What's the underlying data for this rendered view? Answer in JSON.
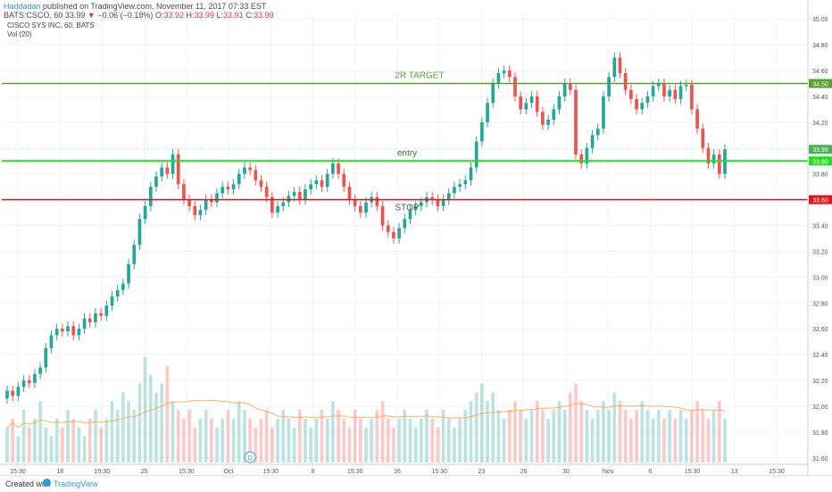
{
  "header": {
    "author": "Haddadan",
    "published_text": " published on TradingView.com, November 11, 2017 07:33 EST",
    "symbol": "BATS:CSCO, 60",
    "last_price": "33.99",
    "change_arrow": "▼",
    "change": "−0.06 (−0.18%)",
    "o_label": "O:",
    "o_value": "33.92",
    "h_label": "H:",
    "h_value": "33.99",
    "l_label": "L:",
    "l_value": "33.91",
    "c_label": "C:",
    "c_value": "33.99"
  },
  "legend": {
    "title": "CISCO SYS INC, 60, BATS",
    "volume": "Vol (20)"
  },
  "footer": {
    "created_with": "Created with",
    "brand": "TradingView"
  },
  "colors": {
    "up": "#26a69a",
    "down": "#ef5350",
    "target": "#5aa02c",
    "entry": "#21e021",
    "stop": "#e0141e",
    "last": "#4caf50"
  },
  "chart_data": {
    "type": "candlestick",
    "title": "CISCO SYS INC, 60, BATS",
    "ylim": [
      31.55,
      35.05
    ],
    "y_ticks": [
      "31.60",
      "31.80",
      "32.00",
      "32.20",
      "32.40",
      "32.60",
      "32.80",
      "33.00",
      "33.20",
      "33.40",
      "33.60",
      "33.80",
      "34.00",
      "34.20",
      "34.40",
      "34.60",
      "34.80",
      "35.00"
    ],
    "x_ticks": [
      "15:30",
      "18",
      "15:30",
      "25",
      "15:30",
      "Oct",
      "15:30",
      "9",
      "15:30",
      "16",
      "15:30",
      "23",
      "26",
      "30",
      "Nov",
      "6",
      "15:30",
      "13",
      "15:30"
    ],
    "levels": [
      {
        "label": "2R TARGET",
        "value": 34.5,
        "price_tag": "34.50"
      },
      {
        "label": "entry",
        "value": 33.9,
        "price_tag": "33.90"
      },
      {
        "label": "STOP",
        "value": 33.6,
        "price_tag": "33.60"
      }
    ],
    "last_price_tag": "33.99",
    "last_value": 33.99,
    "events": [
      {
        "label": "D",
        "kind": "dividend"
      }
    ],
    "series": [
      {
        "name": "CSCO",
        "values": [
          32.12,
          32.08,
          32.15,
          32.2,
          32.18,
          32.25,
          32.3,
          32.45,
          32.55,
          32.6,
          32.58,
          32.62,
          32.55,
          32.6,
          32.68,
          32.65,
          32.72,
          32.7,
          32.78,
          32.85,
          32.9,
          32.95,
          33.1,
          33.25,
          33.45,
          33.55,
          33.7,
          33.78,
          33.85,
          33.8,
          33.95,
          33.72,
          33.6,
          33.55,
          33.48,
          33.52,
          33.6,
          33.58,
          33.65,
          33.7,
          33.68,
          33.72,
          33.8,
          33.85,
          33.83,
          33.75,
          33.7,
          33.62,
          33.5,
          33.55,
          33.58,
          33.63,
          33.66,
          33.6,
          33.68,
          33.72,
          33.75,
          33.7,
          33.8,
          33.88,
          33.8,
          33.7,
          33.6,
          33.55,
          33.5,
          33.58,
          33.62,
          33.55,
          33.4,
          33.35,
          33.3,
          33.38,
          33.45,
          33.52,
          33.55,
          33.58,
          33.62,
          33.6,
          33.55,
          33.6,
          33.65,
          33.7,
          33.72,
          33.75,
          33.85,
          34.05,
          34.2,
          34.35,
          34.5,
          34.58,
          34.6,
          34.55,
          34.4,
          34.3,
          34.35,
          34.4,
          34.28,
          34.18,
          34.22,
          34.3,
          34.4,
          34.5,
          34.45,
          33.95,
          33.88,
          34.0,
          34.1,
          34.15,
          34.4,
          34.55,
          34.7,
          34.58,
          34.45,
          34.38,
          34.3,
          34.35,
          34.4,
          34.48,
          34.5,
          34.4,
          34.45,
          34.38,
          34.48,
          34.49,
          34.3,
          34.15,
          34.0,
          33.88,
          33.95,
          33.8,
          33.99
        ]
      },
      {
        "name": "Vol (20)",
        "values": [
          4,
          5,
          3,
          6,
          4,
          5,
          7,
          4,
          3,
          5,
          4,
          6,
          5,
          4,
          3,
          5,
          6,
          4,
          5,
          7,
          6,
          8,
          7,
          6,
          9,
          12,
          10,
          8,
          9,
          11,
          7,
          6,
          5,
          6,
          4,
          5,
          6,
          5,
          4,
          5,
          6,
          5,
          7,
          6,
          5,
          4,
          5,
          6,
          4,
          5,
          6,
          5,
          4,
          6,
          5,
          4,
          5,
          6,
          5,
          7,
          6,
          5,
          4,
          6,
          5,
          4,
          5,
          6,
          7,
          5,
          4,
          5,
          6,
          5,
          4,
          5,
          6,
          5,
          4,
          6,
          5,
          4,
          5,
          6,
          7,
          8,
          9,
          7,
          8,
          6,
          5,
          6,
          7,
          6,
          5,
          6,
          7,
          6,
          5,
          6,
          7,
          6,
          8,
          9,
          7,
          6,
          5,
          6,
          7,
          6,
          8,
          7,
          6,
          5,
          6,
          7,
          6,
          5,
          6,
          5,
          6,
          5,
          6,
          5,
          6,
          7,
          6,
          5,
          6,
          7,
          5
        ]
      }
    ]
  }
}
